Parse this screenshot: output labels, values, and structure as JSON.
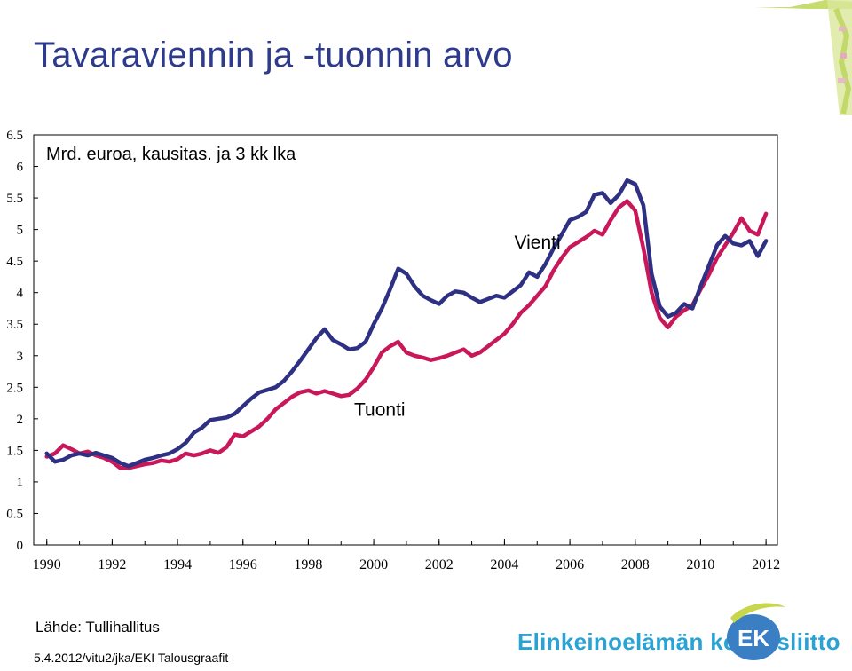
{
  "header": {
    "title": "Tavaraviennin ja -tuonnin arvo"
  },
  "footer": {
    "source": "Lähde: Tullihallitus",
    "footnote": "5.4.2012/vitu2/jka/EKI Talousgraafit",
    "brand": "Elinkeinoelämän keskusliitto",
    "logo_text": "EK"
  },
  "colors": {
    "vienti": "#2e3183",
    "tuonti": "#c8185a",
    "title": "#2e3a8c",
    "brand": "#2aa2d4"
  },
  "chart_data": {
    "type": "line",
    "title": "",
    "subtitle": "Mrd. euroa, kausitas. ja 3 kk lka",
    "xlabel": "",
    "ylabel": "",
    "xlim": [
      1989.6,
      2012.35
    ],
    "ylim": [
      0,
      6.5
    ],
    "yticks": [
      "0",
      "0.5",
      "1",
      "1.5",
      "2",
      "2.5",
      "3",
      "3.5",
      "4",
      "4.5",
      "5",
      "5.5",
      "6",
      "6.5"
    ],
    "xticks": [
      "1990",
      "1992",
      "1994",
      "1996",
      "1998",
      "2000",
      "2002",
      "2004",
      "2006",
      "2008",
      "2010",
      "2012"
    ],
    "grid": false,
    "legend": "inline labels",
    "series": [
      {
        "name": "Vienti",
        "label_pos": [
          2004.3,
          4.7
        ],
        "points": [
          [
            1990.0,
            1.45
          ],
          [
            1990.25,
            1.32
          ],
          [
            1990.5,
            1.35
          ],
          [
            1990.75,
            1.42
          ],
          [
            1991.0,
            1.45
          ],
          [
            1991.25,
            1.42
          ],
          [
            1991.5,
            1.46
          ],
          [
            1991.75,
            1.42
          ],
          [
            1992.0,
            1.38
          ],
          [
            1992.25,
            1.3
          ],
          [
            1992.5,
            1.25
          ],
          [
            1992.75,
            1.3
          ],
          [
            1993.0,
            1.35
          ],
          [
            1993.25,
            1.38
          ],
          [
            1993.5,
            1.42
          ],
          [
            1993.75,
            1.45
          ],
          [
            1994.0,
            1.52
          ],
          [
            1994.25,
            1.62
          ],
          [
            1994.5,
            1.78
          ],
          [
            1994.75,
            1.86
          ],
          [
            1995.0,
            1.98
          ],
          [
            1995.25,
            2.0
          ],
          [
            1995.5,
            2.02
          ],
          [
            1995.75,
            2.08
          ],
          [
            1996.0,
            2.2
          ],
          [
            1996.25,
            2.32
          ],
          [
            1996.5,
            2.42
          ],
          [
            1996.75,
            2.46
          ],
          [
            1997.0,
            2.5
          ],
          [
            1997.25,
            2.6
          ],
          [
            1997.5,
            2.75
          ],
          [
            1997.75,
            2.92
          ],
          [
            1998.0,
            3.1
          ],
          [
            1998.25,
            3.28
          ],
          [
            1998.5,
            3.42
          ],
          [
            1998.75,
            3.25
          ],
          [
            1999.0,
            3.18
          ],
          [
            1999.25,
            3.1
          ],
          [
            1999.5,
            3.12
          ],
          [
            1999.75,
            3.22
          ],
          [
            2000.0,
            3.5
          ],
          [
            2000.25,
            3.75
          ],
          [
            2000.5,
            4.05
          ],
          [
            2000.75,
            4.38
          ],
          [
            2001.0,
            4.3
          ],
          [
            2001.25,
            4.1
          ],
          [
            2001.5,
            3.95
          ],
          [
            2001.75,
            3.88
          ],
          [
            2002.0,
            3.82
          ],
          [
            2002.25,
            3.95
          ],
          [
            2002.5,
            4.02
          ],
          [
            2002.75,
            4.0
          ],
          [
            2003.0,
            3.92
          ],
          [
            2003.25,
            3.85
          ],
          [
            2003.5,
            3.9
          ],
          [
            2003.75,
            3.95
          ],
          [
            2004.0,
            3.92
          ],
          [
            2004.25,
            4.02
          ],
          [
            2004.5,
            4.12
          ],
          [
            2004.75,
            4.32
          ],
          [
            2005.0,
            4.25
          ],
          [
            2005.25,
            4.45
          ],
          [
            2005.5,
            4.7
          ],
          [
            2005.75,
            4.92
          ],
          [
            2006.0,
            5.15
          ],
          [
            2006.25,
            5.2
          ],
          [
            2006.5,
            5.28
          ],
          [
            2006.75,
            5.55
          ],
          [
            2007.0,
            5.58
          ],
          [
            2007.25,
            5.42
          ],
          [
            2007.5,
            5.55
          ],
          [
            2007.75,
            5.78
          ],
          [
            2008.0,
            5.72
          ],
          [
            2008.25,
            5.38
          ],
          [
            2008.5,
            4.3
          ],
          [
            2008.75,
            3.78
          ],
          [
            2009.0,
            3.62
          ],
          [
            2009.25,
            3.68
          ],
          [
            2009.5,
            3.82
          ],
          [
            2009.75,
            3.75
          ],
          [
            2010.0,
            4.1
          ],
          [
            2010.25,
            4.42
          ],
          [
            2010.5,
            4.75
          ],
          [
            2010.75,
            4.9
          ],
          [
            2011.0,
            4.78
          ],
          [
            2011.25,
            4.75
          ],
          [
            2011.5,
            4.82
          ],
          [
            2011.75,
            4.58
          ],
          [
            2012.0,
            4.82
          ]
        ]
      },
      {
        "name": "Tuonti",
        "label_pos": [
          1999.4,
          2.05
        ],
        "points": [
          [
            1990.0,
            1.4
          ],
          [
            1990.25,
            1.45
          ],
          [
            1990.5,
            1.58
          ],
          [
            1990.75,
            1.52
          ],
          [
            1991.0,
            1.45
          ],
          [
            1991.25,
            1.48
          ],
          [
            1991.5,
            1.42
          ],
          [
            1991.75,
            1.38
          ],
          [
            1992.0,
            1.32
          ],
          [
            1992.25,
            1.22
          ],
          [
            1992.5,
            1.22
          ],
          [
            1992.75,
            1.25
          ],
          [
            1993.0,
            1.28
          ],
          [
            1993.25,
            1.3
          ],
          [
            1993.5,
            1.34
          ],
          [
            1993.75,
            1.32
          ],
          [
            1994.0,
            1.36
          ],
          [
            1994.25,
            1.45
          ],
          [
            1994.5,
            1.42
          ],
          [
            1994.75,
            1.45
          ],
          [
            1995.0,
            1.5
          ],
          [
            1995.25,
            1.46
          ],
          [
            1995.5,
            1.55
          ],
          [
            1995.75,
            1.75
          ],
          [
            1996.0,
            1.72
          ],
          [
            1996.25,
            1.8
          ],
          [
            1996.5,
            1.88
          ],
          [
            1996.75,
            2.0
          ],
          [
            1997.0,
            2.15
          ],
          [
            1997.25,
            2.25
          ],
          [
            1997.5,
            2.35
          ],
          [
            1997.75,
            2.42
          ],
          [
            1998.0,
            2.45
          ],
          [
            1998.25,
            2.4
          ],
          [
            1998.5,
            2.44
          ],
          [
            1998.75,
            2.4
          ],
          [
            1999.0,
            2.36
          ],
          [
            1999.25,
            2.38
          ],
          [
            1999.5,
            2.48
          ],
          [
            1999.75,
            2.62
          ],
          [
            2000.0,
            2.82
          ],
          [
            2000.25,
            3.05
          ],
          [
            2000.5,
            3.15
          ],
          [
            2000.75,
            3.22
          ],
          [
            2001.0,
            3.05
          ],
          [
            2001.25,
            3.0
          ],
          [
            2001.5,
            2.97
          ],
          [
            2001.75,
            2.93
          ],
          [
            2002.0,
            2.96
          ],
          [
            2002.25,
            3.0
          ],
          [
            2002.5,
            3.05
          ],
          [
            2002.75,
            3.1
          ],
          [
            2003.0,
            3.0
          ],
          [
            2003.25,
            3.05
          ],
          [
            2003.5,
            3.15
          ],
          [
            2003.75,
            3.25
          ],
          [
            2004.0,
            3.35
          ],
          [
            2004.25,
            3.5
          ],
          [
            2004.5,
            3.68
          ],
          [
            2004.75,
            3.8
          ],
          [
            2005.0,
            3.95
          ],
          [
            2005.25,
            4.1
          ],
          [
            2005.5,
            4.35
          ],
          [
            2005.75,
            4.55
          ],
          [
            2006.0,
            4.72
          ],
          [
            2006.25,
            4.8
          ],
          [
            2006.5,
            4.88
          ],
          [
            2006.75,
            4.98
          ],
          [
            2007.0,
            4.92
          ],
          [
            2007.25,
            5.15
          ],
          [
            2007.5,
            5.35
          ],
          [
            2007.75,
            5.45
          ],
          [
            2008.0,
            5.3
          ],
          [
            2008.25,
            4.7
          ],
          [
            2008.5,
            4.0
          ],
          [
            2008.75,
            3.6
          ],
          [
            2009.0,
            3.45
          ],
          [
            2009.25,
            3.62
          ],
          [
            2009.5,
            3.72
          ],
          [
            2009.75,
            3.8
          ],
          [
            2010.0,
            4.05
          ],
          [
            2010.25,
            4.28
          ],
          [
            2010.5,
            4.55
          ],
          [
            2010.75,
            4.75
          ],
          [
            2011.0,
            4.95
          ],
          [
            2011.25,
            5.18
          ],
          [
            2011.5,
            4.98
          ],
          [
            2011.75,
            4.92
          ],
          [
            2012.0,
            5.25
          ]
        ]
      }
    ]
  }
}
